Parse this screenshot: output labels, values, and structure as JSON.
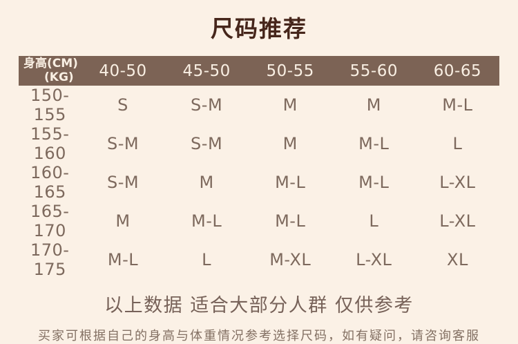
{
  "page": {
    "title": "尺码推荐",
    "note_primary": "以上数据 适合大部分人群 仅供参考",
    "note_secondary": "买家可根据自己的身高与体重情况参考选择尺码，如有疑问，请咨询客服"
  },
  "colors": {
    "background": "#fbf1e6",
    "title_text": "#46261b",
    "header_bg": "#7c6355",
    "header_text": "#f9efe3",
    "body_text": "#7d695d",
    "note_primary_text": "#776259",
    "note_secondary_text": "#837063"
  },
  "chart_data": {
    "type": "table",
    "title": "尺码推荐",
    "corner_header": {
      "line1": "身高(CM)",
      "line2": "(KG)",
      "meaning": "rows are height in CM, columns are weight in KG"
    },
    "columns": [
      "40-50",
      "45-50",
      "50-55",
      "55-60",
      "60-65"
    ],
    "rows": [
      {
        "height": "150-155",
        "sizes": [
          "S",
          "S-M",
          "M",
          "M",
          "M-L"
        ]
      },
      {
        "height": "155-160",
        "sizes": [
          "S-M",
          "S-M",
          "M",
          "M-L",
          "L"
        ]
      },
      {
        "height": "160-165",
        "sizes": [
          "S-M",
          "M",
          "M-L",
          "M-L",
          "L-XL"
        ]
      },
      {
        "height": "165-170",
        "sizes": [
          "M",
          "M-L",
          "M-L",
          "L",
          "L-XL"
        ]
      },
      {
        "height": "170-175",
        "sizes": [
          "M-L",
          "L",
          "M-XL",
          "L-XL",
          "XL"
        ]
      }
    ]
  }
}
